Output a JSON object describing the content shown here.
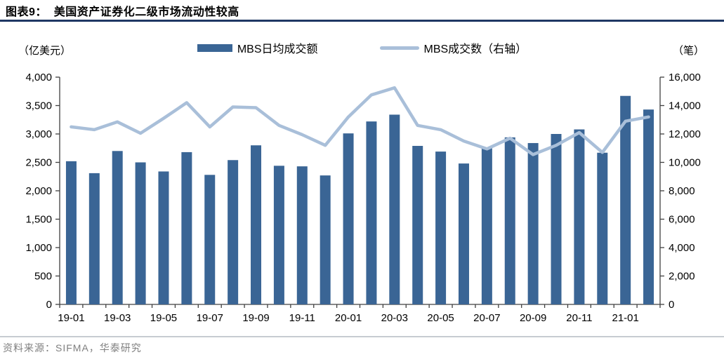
{
  "header": {
    "title": "图表9：  美国资产证券化二级市场流动性较高"
  },
  "axis_units": {
    "left": "（亿美元）",
    "right": "（笔）"
  },
  "legend": {
    "items": [
      {
        "label": "MBS日均成交额",
        "type": "bar"
      },
      {
        "label": "MBS成交数（右轴）",
        "type": "line"
      }
    ]
  },
  "footer": {
    "source": "资料来源：SIFMA，华泰研究"
  },
  "colors": {
    "bar": "#3A6595",
    "line": "#A9BFD9",
    "title_rule": "#1F3864",
    "axis": "#404040",
    "footer_rule": "#C7CCD1",
    "footer_text": "#7F7F7F"
  },
  "chart_data": {
    "type": "bar",
    "title": "美国资产证券化二级市场流动性较高",
    "categories": [
      "19-01",
      "19-02",
      "19-03",
      "19-04",
      "19-05",
      "19-06",
      "19-07",
      "19-08",
      "19-09",
      "19-10",
      "19-11",
      "19-12",
      "20-01",
      "20-02",
      "20-03",
      "20-04",
      "20-05",
      "20-06",
      "20-07",
      "20-08",
      "20-09",
      "20-10",
      "20-11",
      "20-12",
      "21-01",
      "21-02"
    ],
    "series": [
      {
        "name": "MBS日均成交额",
        "type": "bar",
        "axis": "left",
        "values": [
          2520,
          2310,
          2700,
          2500,
          2340,
          2680,
          2280,
          2540,
          2800,
          2440,
          2430,
          2270,
          3010,
          3220,
          3340,
          2790,
          2690,
          2480,
          2750,
          2940,
          2840,
          3000,
          3080,
          2670,
          3670,
          3430
        ]
      },
      {
        "name": "MBS成交数（右轴）",
        "type": "line",
        "axis": "right",
        "values": [
          12500,
          12300,
          12850,
          12050,
          13100,
          14200,
          12500,
          13900,
          13850,
          12600,
          11950,
          11200,
          13200,
          14750,
          15250,
          12600,
          12300,
          11500,
          10950,
          11700,
          10550,
          11200,
          12100,
          10700,
          12900,
          13200
        ]
      }
    ],
    "left_axis": {
      "label": "（亿美元）",
      "min": 0,
      "max": 4000,
      "step": 500
    },
    "right_axis": {
      "label": "（笔）",
      "min": 0,
      "max": 16000,
      "step": 2000
    },
    "x_tick_label_every": 2,
    "grid": false,
    "legend_position": "top"
  }
}
